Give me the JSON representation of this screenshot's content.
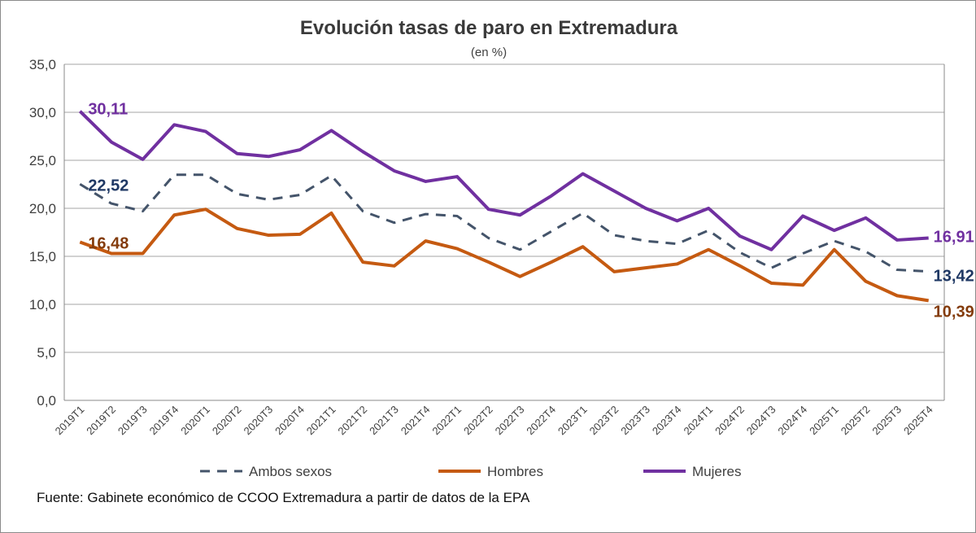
{
  "chart_data": {
    "type": "line",
    "title": "Evolución tasas de paro en Extremadura",
    "subtitle": "(en %)",
    "xlabel": "",
    "ylabel": "",
    "ylim": [
      0,
      35
    ],
    "yticks": [
      "0,0",
      "5,0",
      "10,0",
      "15,0",
      "20,0",
      "25,0",
      "30,0",
      "35,0"
    ],
    "grid": true,
    "legend_position": "bottom",
    "categories": [
      "2019T1",
      "2019T2",
      "2019T3",
      "2019T4",
      "2020T1",
      "2020T2",
      "2020T3",
      "2020T4",
      "2021T1",
      "2021T2",
      "2021T3",
      "2021T4",
      "2022T1",
      "2022T2",
      "2022T3",
      "2022T4",
      "2023T1",
      "2023T2",
      "2023T3",
      "2023T4",
      "2024T1",
      "2024T2",
      "2024T3",
      "2024T4",
      "2025T1",
      "2025T2",
      "2025T3",
      "2025T4"
    ],
    "series": [
      {
        "name": "Ambos sexos",
        "color": "#44546a",
        "dashed": true,
        "values": [
          22.52,
          20.5,
          19.7,
          23.5,
          23.5,
          21.5,
          20.9,
          21.4,
          23.4,
          19.7,
          18.5,
          19.4,
          19.2,
          16.9,
          15.7,
          17.6,
          19.5,
          17.2,
          16.6,
          16.3,
          17.7,
          15.4,
          13.8,
          15.3,
          16.6,
          15.5,
          13.6,
          13.42
        ],
        "first_label": "22,52",
        "last_label": "13,42",
        "label_color": "#1f3864"
      },
      {
        "name": "Hombres",
        "color": "#c55a11",
        "dashed": false,
        "values": [
          16.48,
          15.3,
          15.3,
          19.3,
          19.9,
          17.9,
          17.2,
          17.3,
          19.5,
          14.4,
          14.0,
          16.6,
          15.8,
          14.4,
          12.9,
          14.4,
          16.0,
          13.4,
          13.8,
          14.2,
          15.7,
          14.0,
          12.2,
          12.0,
          15.7,
          12.4,
          10.9,
          10.39
        ],
        "first_label": "16,48",
        "last_label": "10,39",
        "label_color": "#843c0c"
      },
      {
        "name": "Mujeres",
        "color": "#7030a0",
        "dashed": false,
        "values": [
          30.11,
          26.9,
          25.1,
          28.7,
          28.0,
          25.7,
          25.4,
          26.1,
          28.1,
          25.9,
          23.9,
          22.8,
          23.3,
          19.9,
          19.3,
          21.3,
          23.6,
          21.8,
          20.0,
          18.7,
          20.0,
          17.1,
          15.7,
          19.2,
          17.7,
          19.0,
          16.7,
          16.91
        ],
        "first_label": "30,11",
        "last_label": "16,91",
        "label_color": "#7030a0"
      }
    ]
  },
  "source": "Fuente: Gabinete económico de CCOO Extremadura a partir de datos de la EPA"
}
